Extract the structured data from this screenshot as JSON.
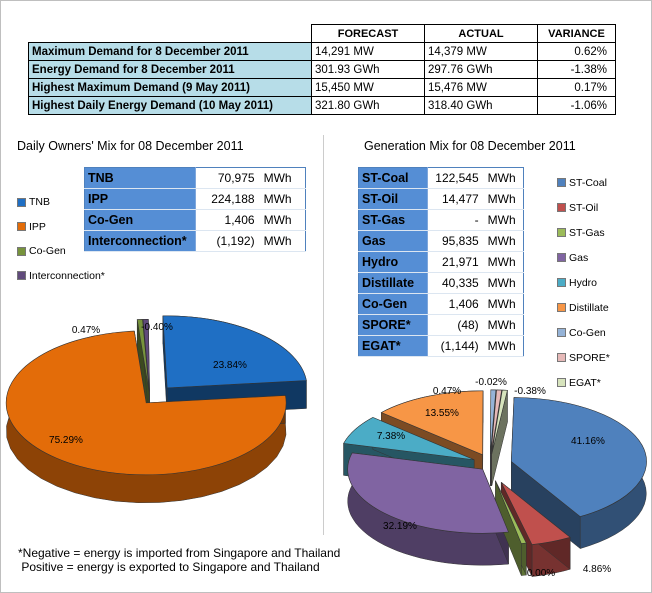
{
  "summary": {
    "headers": [
      "",
      "FORECAST",
      "ACTUAL",
      "VARIANCE"
    ],
    "rows": [
      {
        "label": "Maximum Demand for 8 December 2011",
        "forecast": "14,291  MW",
        "actual": "14,379  MW",
        "variance": "0.62%"
      },
      {
        "label": "Energy Demand for 8 December 2011",
        "forecast": "301.93  GWh",
        "actual": "297.76  GWh",
        "variance": "-1.38%"
      },
      {
        "label": "Highest Maximum Demand (9 May 2011)",
        "forecast": "15,450  MW",
        "actual": "15,476  MW",
        "variance": "0.17%"
      },
      {
        "label": "Highest Daily Energy Demand (10 May 2011)",
        "forecast": "321.80  GWh",
        "actual": "318.40  GWh",
        "variance": "-1.06%"
      }
    ]
  },
  "owners": {
    "title": "Daily Owners' Mix for 08 December 2011",
    "rows": [
      {
        "name": "TNB",
        "value": "70,975",
        "unit": "MWh"
      },
      {
        "name": "IPP",
        "value": "224,188",
        "unit": "MWh"
      },
      {
        "name": "Co-Gen",
        "value": "1,406",
        "unit": "MWh"
      },
      {
        "name": "Interconnection*",
        "value": "(1,192)",
        "unit": "MWh"
      }
    ]
  },
  "generation": {
    "title": "Generation Mix for 08 December 2011",
    "rows": [
      {
        "name": "ST-Coal",
        "value": "122,545",
        "unit": "MWh"
      },
      {
        "name": "ST-Oil",
        "value": "14,477",
        "unit": "MWh"
      },
      {
        "name": "ST-Gas",
        "value": "-",
        "unit": "MWh"
      },
      {
        "name": "Gas",
        "value": "95,835",
        "unit": "MWh"
      },
      {
        "name": "Hydro",
        "value": "21,971",
        "unit": "MWh"
      },
      {
        "name": "Distillate",
        "value": "40,335",
        "unit": "MWh"
      },
      {
        "name": "Co-Gen",
        "value": "1,406",
        "unit": "MWh"
      },
      {
        "name": "SPORE*",
        "value": "(48)",
        "unit": "MWh"
      },
      {
        "name": "EGAT*",
        "value": "(1,144)",
        "unit": "MWh"
      }
    ]
  },
  "chart_data": [
    {
      "type": "pie",
      "title": "Daily Owners' Mix for 08 December 2011",
      "legend_placement": "left",
      "categories": [
        "TNB",
        "IPP",
        "Co-Gen",
        "Interconnection*"
      ],
      "values": [
        23.84,
        75.29,
        0.47,
        -0.4
      ],
      "labels": [
        "23.84%",
        "75.29%",
        "0.47%",
        "-0.40%"
      ],
      "colors": [
        "#1f6fc4",
        "#e36c09",
        "#77933c",
        "#604a7b"
      ]
    },
    {
      "type": "pie",
      "title": "Generation Mix for 08 December 2011",
      "legend_placement": "right",
      "categories": [
        "ST-Coal",
        "ST-Oil",
        "ST-Gas",
        "Gas",
        "Hydro",
        "Distillate",
        "Co-Gen",
        "SPORE*",
        "EGAT*"
      ],
      "values": [
        41.16,
        4.86,
        0.0,
        32.19,
        7.38,
        13.55,
        0.47,
        -0.02,
        -0.38
      ],
      "labels": [
        "41.16%",
        "4.86%",
        "0.00%",
        "32.19%",
        "7.38%",
        "13.55%",
        "0.47%",
        "-0.02%",
        "-0.38%"
      ],
      "colors": [
        "#4f81bd",
        "#c0504d",
        "#9bbb59",
        "#8064a2",
        "#4bacc6",
        "#f79646",
        "#95b3d7",
        "#e6b9b8",
        "#d7e4bd"
      ]
    }
  ],
  "footnote": {
    "line1": "*Negative = energy is imported from Singapore and Thailand",
    "line2": " Positive = energy is exported to Singapore and Thailand"
  }
}
